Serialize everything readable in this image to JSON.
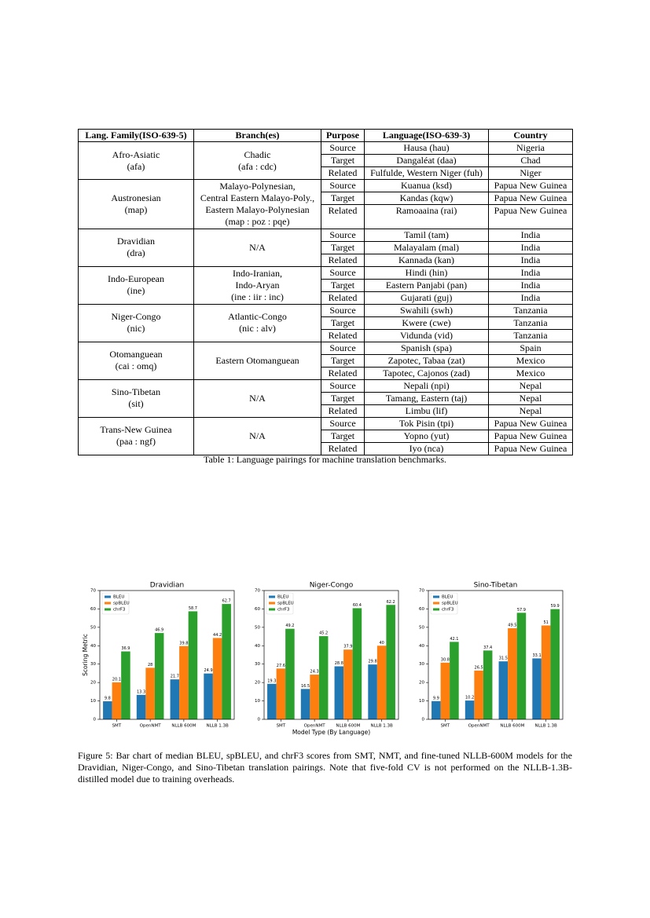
{
  "table": {
    "headers": [
      "Lang. Family(ISO-639-5)",
      "Branch(es)",
      "Purpose",
      "Language(ISO-639-3)",
      "Country"
    ],
    "groups": [
      {
        "family": [
          "Afro-Asiatic",
          "(afa)"
        ],
        "branch": [
          "Chadic",
          "(afa : cdc)"
        ],
        "rows": [
          [
            "Source",
            "Hausa (hau)",
            "Nigeria"
          ],
          [
            "Target",
            "Dangaléat (daa)",
            "Chad"
          ],
          [
            "Related",
            "Fulfulde, Western Niger (fuh)",
            "Niger"
          ]
        ]
      },
      {
        "family": [
          "Austronesian",
          "(map)"
        ],
        "branch": [
          "Malayo-Polynesian,",
          "Central Eastern Malayo-Poly.,",
          "Eastern Malayo-Polynesian",
          "(map : poz : pqe)"
        ],
        "rows": [
          [
            "Source",
            "Kuanua (ksd)",
            "Papua New Guinea"
          ],
          [
            "Target",
            "Kandas (kqw)",
            "Papua New Guinea"
          ],
          [
            "Related",
            "Ramoaaina (rai)",
            "Papua New Guinea"
          ]
        ]
      },
      {
        "family": [
          "Dravidian",
          "(dra)"
        ],
        "branch": [
          "N/A"
        ],
        "rows": [
          [
            "Source",
            "Tamil (tam)",
            "India"
          ],
          [
            "Target",
            "Malayalam (mal)",
            "India"
          ],
          [
            "Related",
            "Kannada (kan)",
            "India"
          ]
        ]
      },
      {
        "family": [
          "Indo-European",
          "(ine)"
        ],
        "branch": [
          "Indo-Iranian,",
          "Indo-Aryan",
          "(ine : iir : inc)"
        ],
        "rows": [
          [
            "Source",
            "Hindi (hin)",
            "India"
          ],
          [
            "Target",
            "Eastern Panjabi (pan)",
            "India"
          ],
          [
            "Related",
            "Gujarati (guj)",
            "India"
          ]
        ]
      },
      {
        "family": [
          "Niger-Congo",
          "(nic)"
        ],
        "branch": [
          "Atlantic-Congo",
          "(nic : alv)"
        ],
        "rows": [
          [
            "Source",
            "Swahili (swh)",
            "Tanzania"
          ],
          [
            "Target",
            "Kwere (cwe)",
            "Tanzania"
          ],
          [
            "Related",
            "Vidunda (vid)",
            "Tanzania"
          ]
        ]
      },
      {
        "family": [
          "Otomanguean",
          "(cai : omq)"
        ],
        "branch": [
          "Eastern Otomanguean"
        ],
        "rows": [
          [
            "Source",
            "Spanish (spa)",
            "Spain"
          ],
          [
            "Target",
            "Zapotec, Tabaa (zat)",
            "Mexico"
          ],
          [
            "Related",
            "Tapotec, Cajonos (zad)",
            "Mexico"
          ]
        ]
      },
      {
        "family": [
          "Sino-Tibetan",
          "(sit)"
        ],
        "branch": [
          "N/A"
        ],
        "rows": [
          [
            "Source",
            "Nepali (npi)",
            "Nepal"
          ],
          [
            "Target",
            "Tamang, Eastern (taj)",
            "Nepal"
          ],
          [
            "Related",
            "Limbu (lif)",
            "Nepal"
          ]
        ]
      },
      {
        "family": [
          "Trans-New Guinea",
          "(paa : ngf)"
        ],
        "branch": [
          "N/A"
        ],
        "rows": [
          [
            "Source",
            "Tok Pisin (tpi)",
            "Papua New Guinea"
          ],
          [
            "Target",
            "Yopno (yut)",
            "Papua New Guinea"
          ],
          [
            "Related",
            "Iyo (nca)",
            "Papua New Guinea"
          ]
        ]
      }
    ],
    "caption": "Table 1:  Language pairings for machine translation benchmarks."
  },
  "chart_data": [
    {
      "type": "bar",
      "title": "Dravidian",
      "y_label": "Scoring Metric",
      "categories": [
        "SMT",
        "OpenNMT",
        "NLLB 600M",
        "NLLB 1.3B"
      ],
      "series": [
        {
          "name": "BLEU",
          "color": "#1f77b4",
          "values": [
            9.8,
            13.3,
            21.7,
            24.9
          ]
        },
        {
          "name": "spBLEU",
          "color": "#ff7f0e",
          "values": [
            20.1,
            28,
            39.8,
            44.2
          ]
        },
        {
          "name": "chrF3",
          "color": "#2ca02c",
          "values": [
            36.9,
            46.9,
            58.7,
            62.7
          ]
        }
      ],
      "ylim": [
        0,
        70
      ],
      "yticks": [
        0,
        10,
        20,
        30,
        40,
        50,
        60,
        70
      ],
      "legend": "upper left"
    },
    {
      "type": "bar",
      "title": "Niger-Congo",
      "x_label": "Model Type (By Language)",
      "categories": [
        "SMT",
        "OpenNMT",
        "NLLB 600M",
        "NLLB 1.3B"
      ],
      "series": [
        {
          "name": "BLEU",
          "color": "#1f77b4",
          "values": [
            19.3,
            16.5,
            28.8,
            29.8
          ]
        },
        {
          "name": "spBLEU",
          "color": "#ff7f0e",
          "values": [
            27.6,
            24.3,
            37.9,
            40
          ]
        },
        {
          "name": "chrF3",
          "color": "#2ca02c",
          "values": [
            49.2,
            45.2,
            60.4,
            62.2
          ]
        }
      ],
      "ylim": [
        0,
        70
      ],
      "yticks": [
        0,
        10,
        20,
        30,
        40,
        50,
        60,
        70
      ],
      "legend": "upper left"
    },
    {
      "type": "bar",
      "title": "Sino-Tibetan",
      "categories": [
        "SMT",
        "OpenNMT",
        "NLLB 600M",
        "NLLB 1.3B"
      ],
      "series": [
        {
          "name": "BLEU",
          "color": "#1f77b4",
          "values": [
            9.9,
            10.2,
            31.5,
            33.1
          ]
        },
        {
          "name": "spBLEU",
          "color": "#ff7f0e",
          "values": [
            30.8,
            26.5,
            49.5,
            51
          ]
        },
        {
          "name": "chrF3",
          "color": "#2ca02c",
          "values": [
            42.1,
            37.4,
            57.9,
            59.9
          ]
        }
      ],
      "ylim": [
        0,
        70
      ],
      "yticks": [
        0,
        10,
        20,
        30,
        40,
        50,
        60,
        70
      ],
      "legend": "upper left"
    }
  ],
  "figure_caption": "Figure 5: Bar chart of median BLEU, spBLEU, and chrF3 scores from SMT, NMT, and fine-tuned NLLB-600M models for the Dravidian, Niger-Congo, and Sino-Tibetan translation pairings.  Note that five-fold CV is not performed on the NLLB-1.3B-distilled model due to training overheads."
}
